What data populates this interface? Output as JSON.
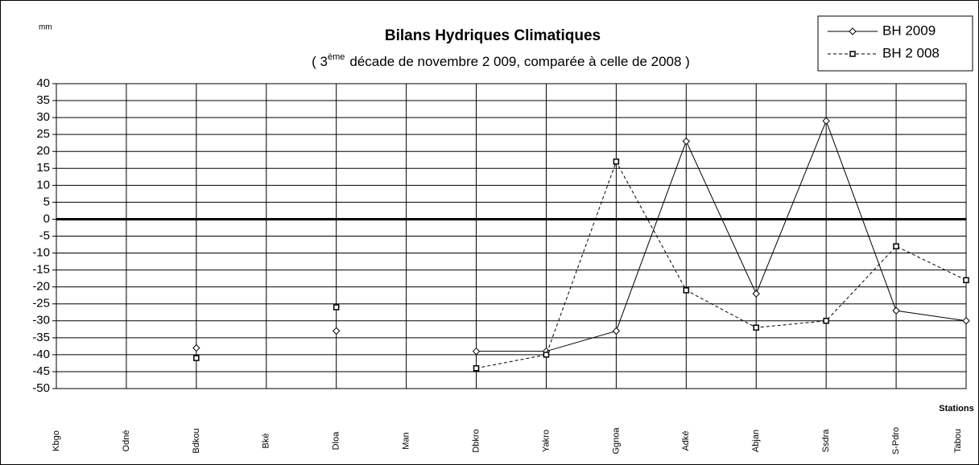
{
  "chart_data": {
    "type": "line",
    "unit_label": "mm",
    "title": "Bilans Hydriques Climatiques",
    "subtitle": [
      "( 3",
      "ème",
      "décade de novembre 2 009, comparée à celle de 2008 )"
    ],
    "x_label": "Stations",
    "categories": [
      "Kbgo",
      "Odné",
      "Bdkou",
      "Bké",
      "Dloa",
      "Man",
      "Dbkro",
      "Yakro",
      "Ggnoa",
      "Adké",
      "Abjan",
      "Ssdra",
      "S-Pdro",
      "Tabou"
    ],
    "series": [
      {
        "name": "BH 2009",
        "color": "#000000",
        "line_style": "solid",
        "marker": "diamond",
        "values": [
          null,
          null,
          -38,
          null,
          -33,
          null,
          -39,
          -39,
          -33,
          23,
          -22,
          29,
          -27,
          -30
        ]
      },
      {
        "name": "BH 2 008",
        "color": "#000000",
        "line_style": "dashed",
        "marker": "square",
        "values": [
          null,
          null,
          -41,
          null,
          -26,
          null,
          -44,
          -40,
          17,
          -21,
          -32,
          -30,
          -8,
          -18
        ]
      }
    ],
    "ylim": [
      -50,
      40
    ],
    "yticks": [
      40,
      35,
      30,
      25,
      20,
      15,
      10,
      5,
      0,
      -5,
      -10,
      -15,
      -20,
      -25,
      -30,
      -35,
      -40,
      -45,
      -50
    ],
    "grid": true,
    "legend": "top-right"
  }
}
